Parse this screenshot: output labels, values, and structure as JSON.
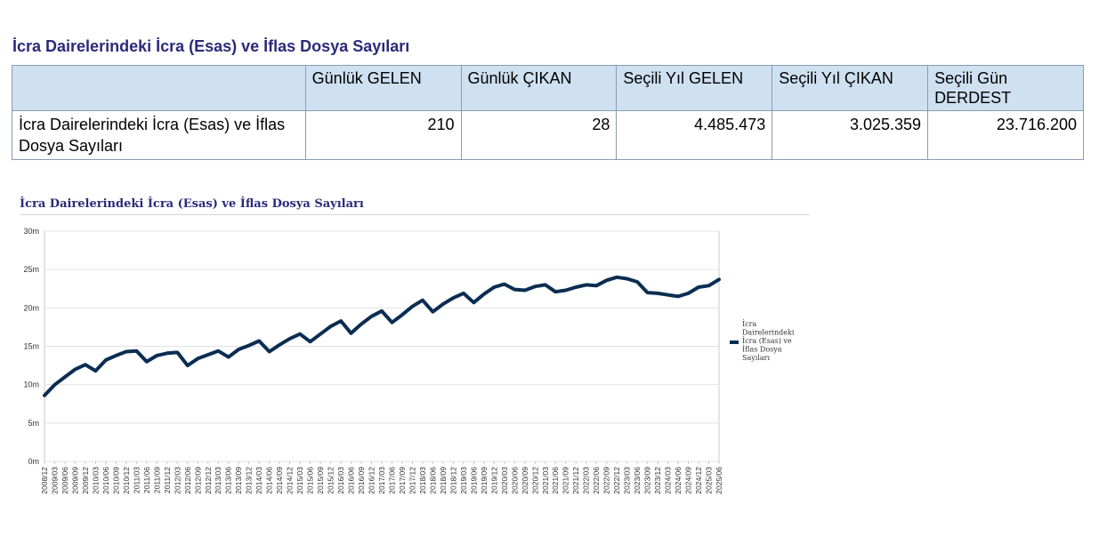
{
  "page": {
    "title": "İcra Dairelerindeki İcra (Esas) ve İflas Dosya Sayıları"
  },
  "table": {
    "headers": [
      "",
      "Günlük GELEN",
      "Günlük ÇIKAN",
      "Seçili Yıl GELEN",
      "Seçili Yıl ÇIKAN",
      "Seçili Gün DERDEST"
    ],
    "row_label": "İcra Dairelerindeki İcra (Esas) ve İflas Dosya Sayıları",
    "values": [
      "210",
      "28",
      "4.485.473",
      "3.025.359",
      "23.716.200"
    ]
  },
  "colors": {
    "title": "#2b2a7a",
    "header_bg": "#cfe0f1",
    "series": "#0b2d52",
    "grid": "#e3e3e3"
  },
  "chart_data": {
    "type": "line",
    "title": "İcra Dairelerindeki İcra (Esas) ve İflas Dosya Sayıları",
    "xlabel": "",
    "ylabel": "",
    "ylim": [
      0,
      30
    ],
    "yticks": [
      "0m",
      "5m",
      "10m",
      "15m",
      "20m",
      "25m",
      "30m"
    ],
    "grid": true,
    "legend": "right",
    "categories": [
      "2008/12",
      "2009/03",
      "2009/06",
      "2009/09",
      "2009/12",
      "2010/03",
      "2010/06",
      "2010/09",
      "2010/12",
      "2011/03",
      "2011/06",
      "2011/09",
      "2011/12",
      "2012/03",
      "2012/06",
      "2012/09",
      "2012/12",
      "2013/03",
      "2013/06",
      "2013/09",
      "2013/12",
      "2014/03",
      "2014/06",
      "2014/09",
      "2014/12",
      "2015/03",
      "2015/06",
      "2015/09",
      "2015/12",
      "2016/03",
      "2016/06",
      "2016/09",
      "2016/12",
      "2017/03",
      "2017/06",
      "2017/09",
      "2017/12",
      "2018/03",
      "2018/06",
      "2018/09",
      "2018/12",
      "2019/03",
      "2019/06",
      "2019/09",
      "2019/12",
      "2020/03",
      "2020/06",
      "2020/09",
      "2020/12",
      "2021/03",
      "2021/06",
      "2021/09",
      "2021/12",
      "2022/03",
      "2022/06",
      "2022/09",
      "2022/12",
      "2023/03",
      "2023/06",
      "2023/09",
      "2023/12",
      "2024/03",
      "2024/06",
      "2024/09",
      "2024/12",
      "2025/03",
      "2025/06"
    ],
    "series": [
      {
        "name": "İcra Dairelerindeki İcra (Esas) ve İflas Dosya Sayıları",
        "values": [
          8.6,
          10.0,
          11.0,
          12.0,
          12.6,
          11.8,
          13.2,
          13.8,
          14.3,
          14.4,
          13.0,
          13.8,
          14.1,
          14.2,
          12.5,
          13.4,
          13.9,
          14.4,
          13.6,
          14.6,
          15.1,
          15.7,
          14.3,
          15.2,
          16.0,
          16.6,
          15.6,
          16.6,
          17.6,
          18.3,
          16.7,
          17.9,
          18.9,
          19.6,
          18.1,
          19.1,
          20.2,
          21.0,
          19.5,
          20.5,
          21.3,
          21.9,
          20.7,
          21.8,
          22.7,
          23.1,
          22.4,
          22.3,
          22.8,
          23.0,
          22.1,
          22.3,
          22.7,
          23.0,
          22.9,
          23.6,
          24.0,
          23.8,
          23.4,
          22.0,
          21.9,
          21.7,
          21.5,
          21.9,
          22.7,
          22.9,
          23.7
        ]
      }
    ]
  }
}
